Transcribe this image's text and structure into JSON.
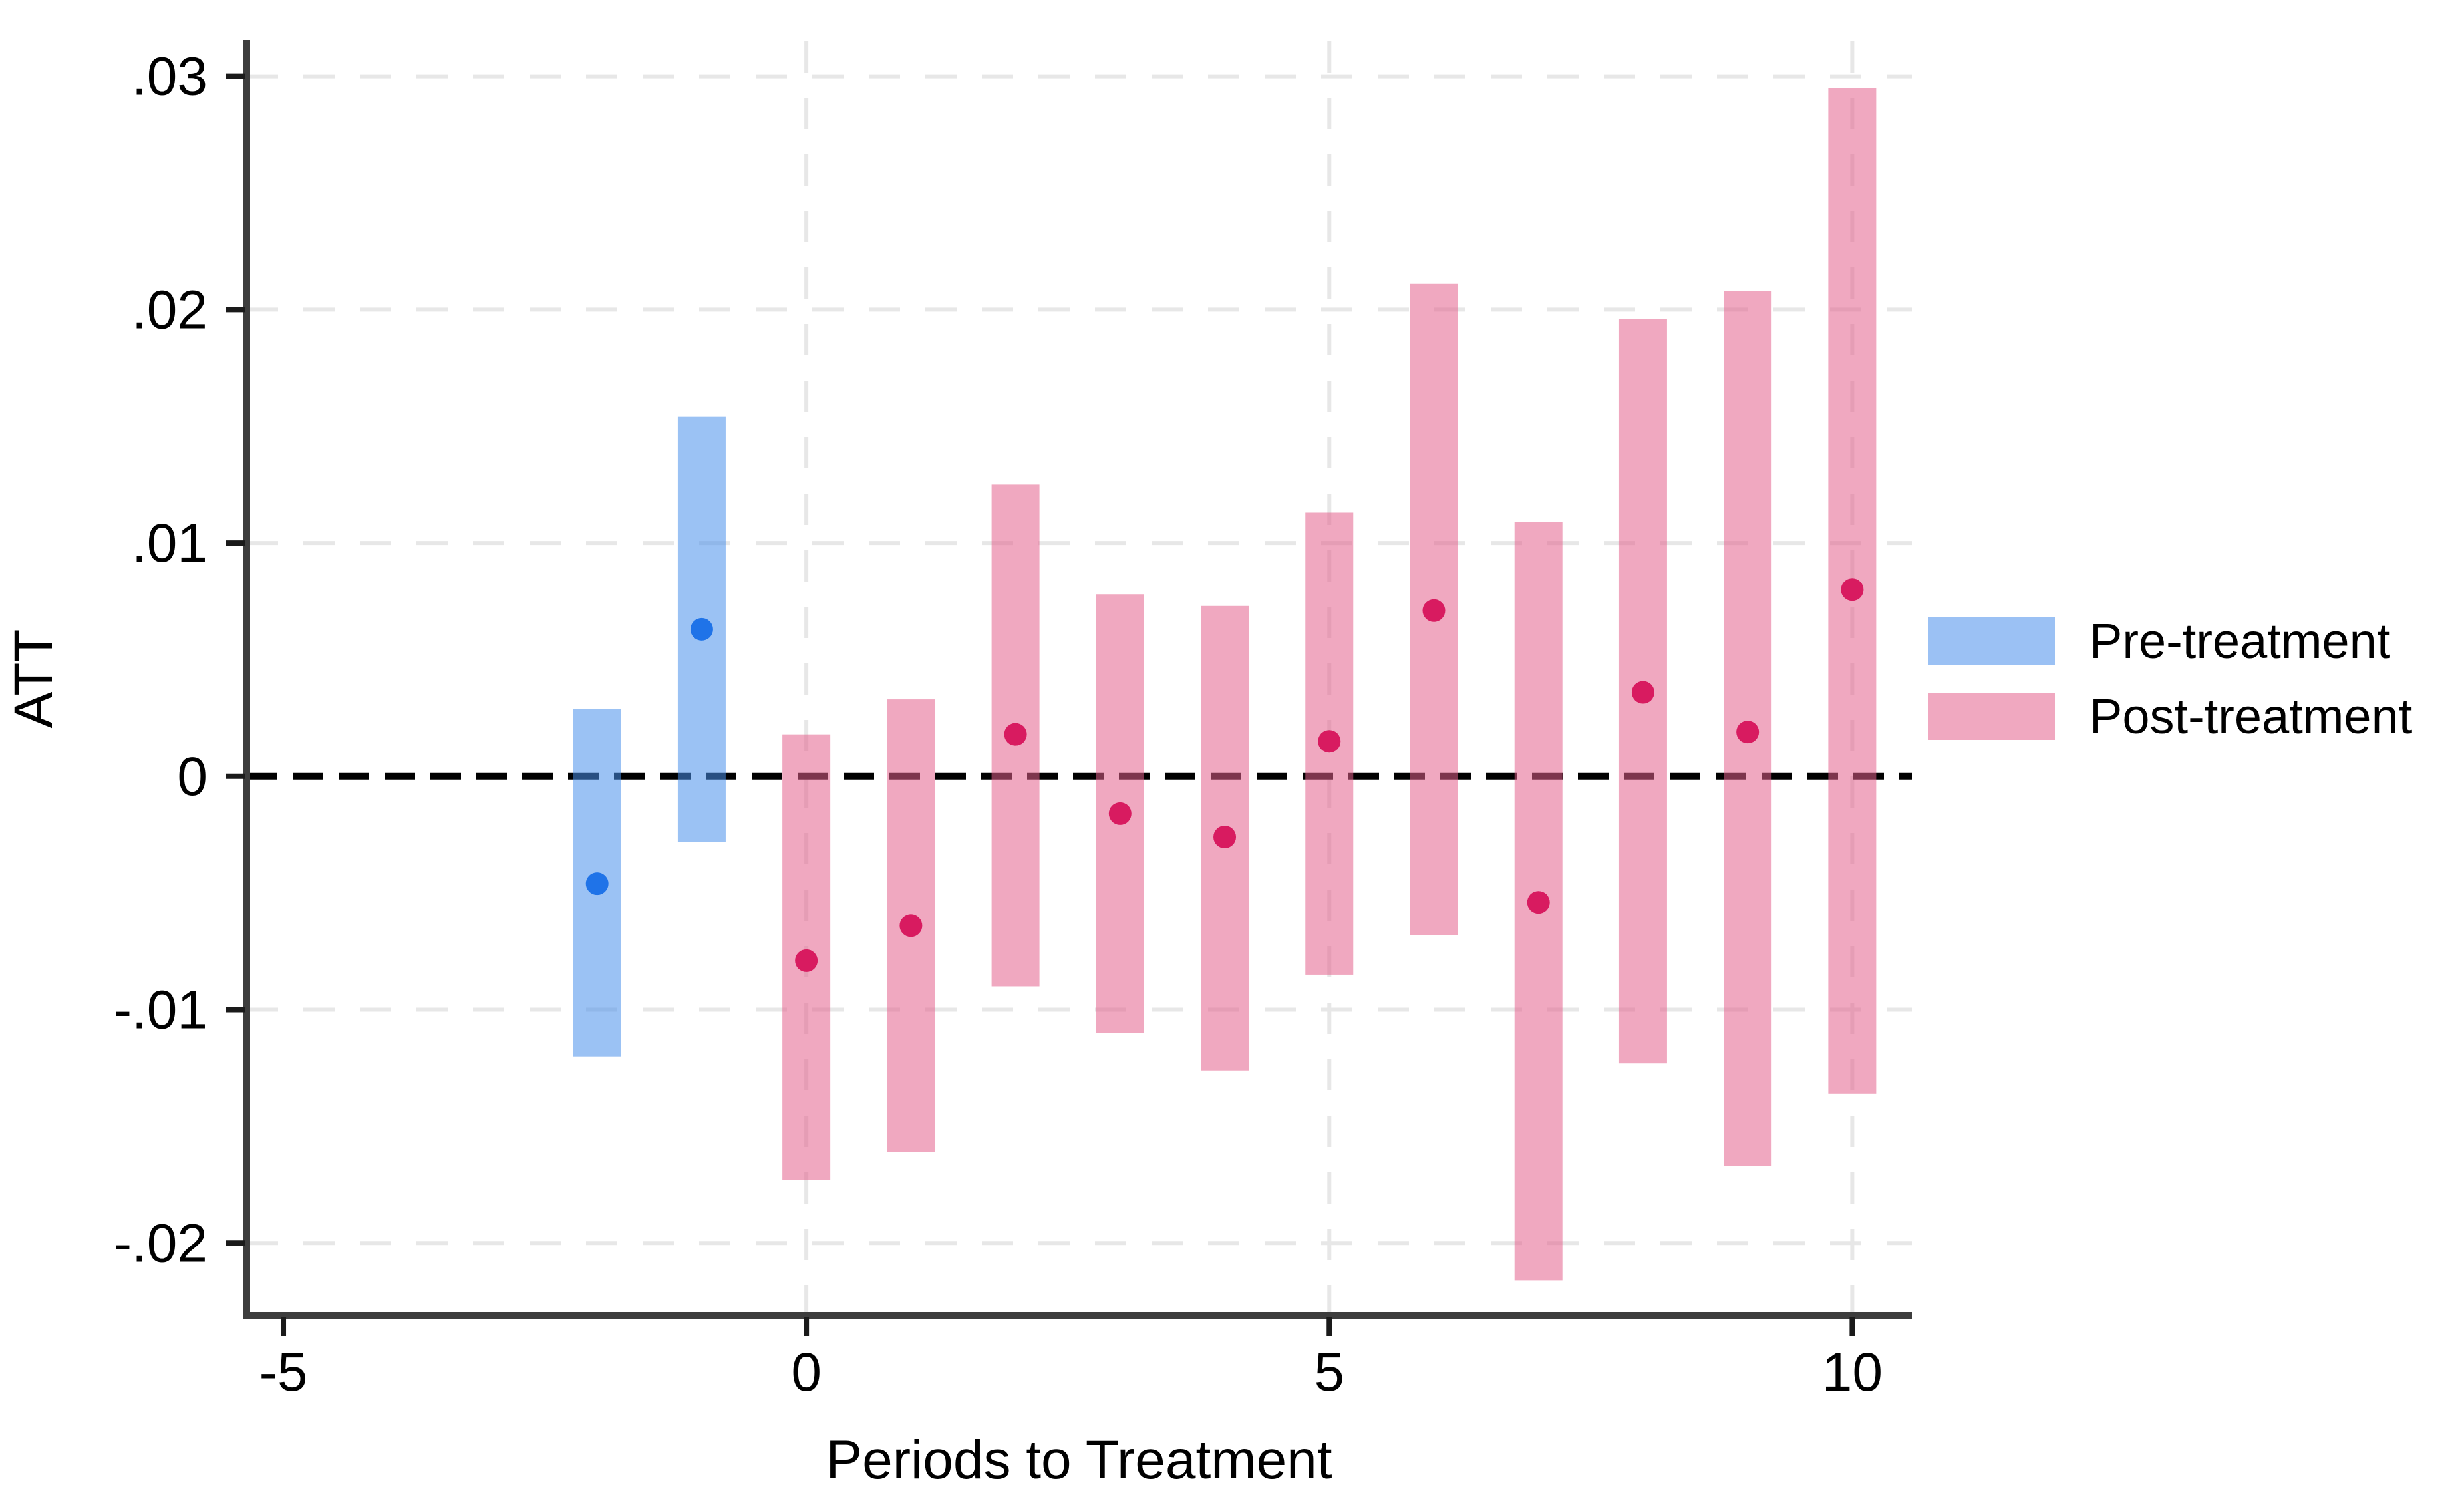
{
  "chart_data": {
    "type": "bar",
    "subtype": "event-study point estimates with confidence-interval range bars",
    "title": "",
    "xlabel": "Periods to Treatment",
    "ylabel": "ATT",
    "x_ticks": [
      -5,
      0,
      5,
      10
    ],
    "x_tick_labels": [
      "-5",
      "0",
      "5",
      "10"
    ],
    "x_grid_at": [
      0,
      5,
      10
    ],
    "y_ticks": [
      -0.02,
      -0.01,
      0,
      0.01,
      0.02,
      0.03
    ],
    "y_tick_labels": [
      "-.02",
      "-.01",
      "0",
      ".01",
      ".02",
      ".03"
    ],
    "xlim": [
      -5.35,
      10.57
    ],
    "ylim": [
      -0.0231,
      0.0315
    ],
    "grid": true,
    "zero_reference_line": true,
    "legend_position": "right-outside-middle",
    "legend": [
      {
        "label": "Pre-treatment",
        "series": "pre"
      },
      {
        "label": "Post-treatment",
        "series": "post"
      }
    ],
    "series": [
      {
        "name": "Pre-treatment",
        "key": "pre",
        "points": [
          {
            "x": -2,
            "estimate": -0.0046,
            "ci_low": -0.012,
            "ci_high": 0.0029
          },
          {
            "x": -1,
            "estimate": 0.0063,
            "ci_low": -0.0028,
            "ci_high": 0.0154
          }
        ]
      },
      {
        "name": "Post-treatment",
        "key": "post",
        "points": [
          {
            "x": 0,
            "estimate": -0.0079,
            "ci_low": -0.0173,
            "ci_high": 0.0018
          },
          {
            "x": 1,
            "estimate": -0.0064,
            "ci_low": -0.0161,
            "ci_high": 0.0033
          },
          {
            "x": 2,
            "estimate": 0.0018,
            "ci_low": -0.009,
            "ci_high": 0.0125
          },
          {
            "x": 3,
            "estimate": -0.0016,
            "ci_low": -0.011,
            "ci_high": 0.0078
          },
          {
            "x": 4,
            "estimate": -0.0026,
            "ci_low": -0.0126,
            "ci_high": 0.0073
          },
          {
            "x": 5,
            "estimate": 0.0015,
            "ci_low": -0.0085,
            "ci_high": 0.0113
          },
          {
            "x": 6,
            "estimate": 0.0071,
            "ci_low": -0.0068,
            "ci_high": 0.0211
          },
          {
            "x": 7,
            "estimate": -0.0054,
            "ci_low": -0.0216,
            "ci_high": 0.0109
          },
          {
            "x": 8,
            "estimate": 0.0036,
            "ci_low": -0.0123,
            "ci_high": 0.0196
          },
          {
            "x": 9,
            "estimate": 0.0019,
            "ci_low": -0.0167,
            "ci_high": 0.0208
          },
          {
            "x": 10,
            "estimate": 0.008,
            "ci_low": -0.0136,
            "ci_high": 0.0295
          }
        ]
      }
    ]
  },
  "colors": {
    "pre_bar": "rgba(73,143,235,0.55)",
    "post_bar": "rgba(227,97,141,0.55)",
    "pre_dot": "#1F73E8",
    "post_dot": "#D81B60",
    "pre_legend_swatch": "#9BC1F4",
    "post_legend_swatch": "#F0A8C0",
    "zero_line": "#000000",
    "grid_line": "#E7E7E7",
    "axis_line": "#3D3D3D",
    "tick": "#1A1A1A",
    "text": "#000000"
  }
}
